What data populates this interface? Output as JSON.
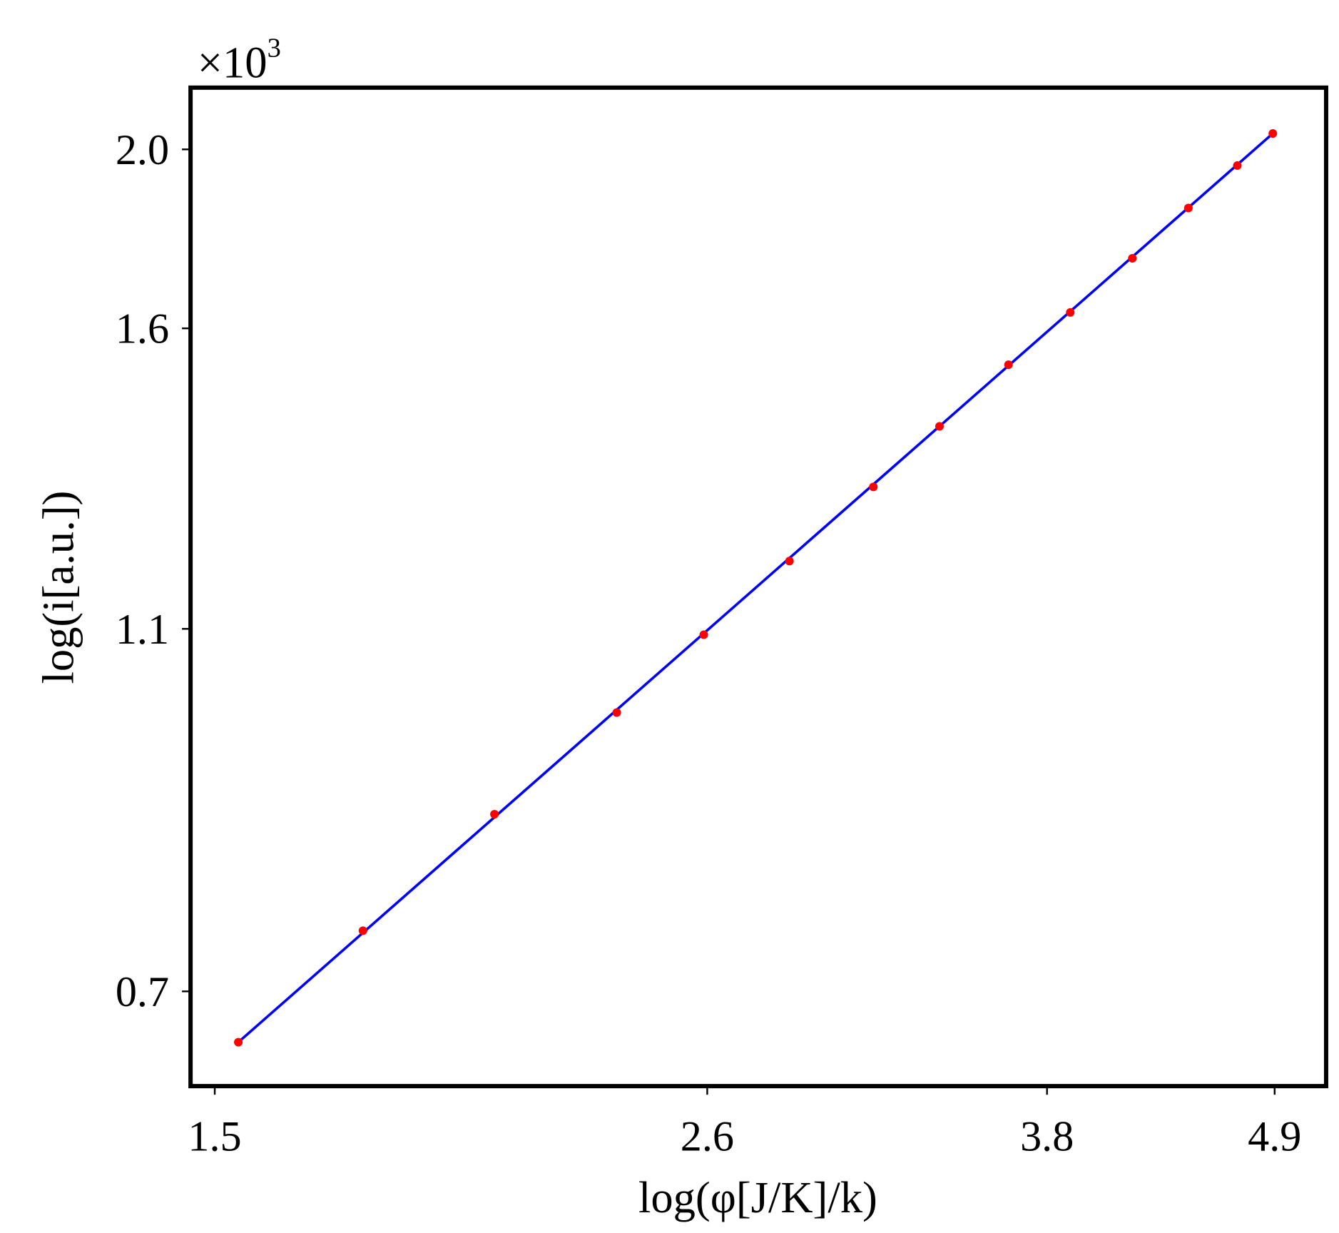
{
  "chart_data": {
    "type": "scatter",
    "title": "",
    "xlabel": "log(φ[J/K]/k)",
    "ylabel": "log(i[a.u.])",
    "multiplier": {
      "prefix": "×10",
      "exponent": "3"
    },
    "x_scale": "log",
    "y_scale": "log",
    "xlim": [
      1.46,
      5.19
    ],
    "ylim": [
      0.622,
      2.16
    ],
    "xticks": [
      1.5,
      2.6,
      3.8,
      4.9
    ],
    "xtick_labels": [
      "1.5",
      "2.6",
      "3.8",
      "4.9"
    ],
    "yticks": [
      0.7,
      1.1,
      1.6,
      2.0
    ],
    "ytick_labels": [
      "0.7",
      "1.1",
      "1.6",
      "2.0"
    ],
    "grid": false,
    "legend": "none",
    "series": [
      {
        "kind": "points",
        "color": "#ff0000",
        "x": [
          1.54,
          1.77,
          2.05,
          2.35,
          2.59,
          2.85,
          3.13,
          3.37,
          3.64,
          3.9,
          4.18,
          4.45,
          4.7,
          4.89
        ],
        "y": [
          0.657,
          0.755,
          0.873,
          0.991,
          1.092,
          1.197,
          1.313,
          1.416,
          1.529,
          1.632,
          1.746,
          1.859,
          1.96,
          2.04
        ]
      },
      {
        "kind": "fit-line",
        "color": "#0000ff",
        "x": [
          1.54,
          4.89
        ],
        "y": [
          0.657,
          2.04
        ]
      }
    ]
  }
}
